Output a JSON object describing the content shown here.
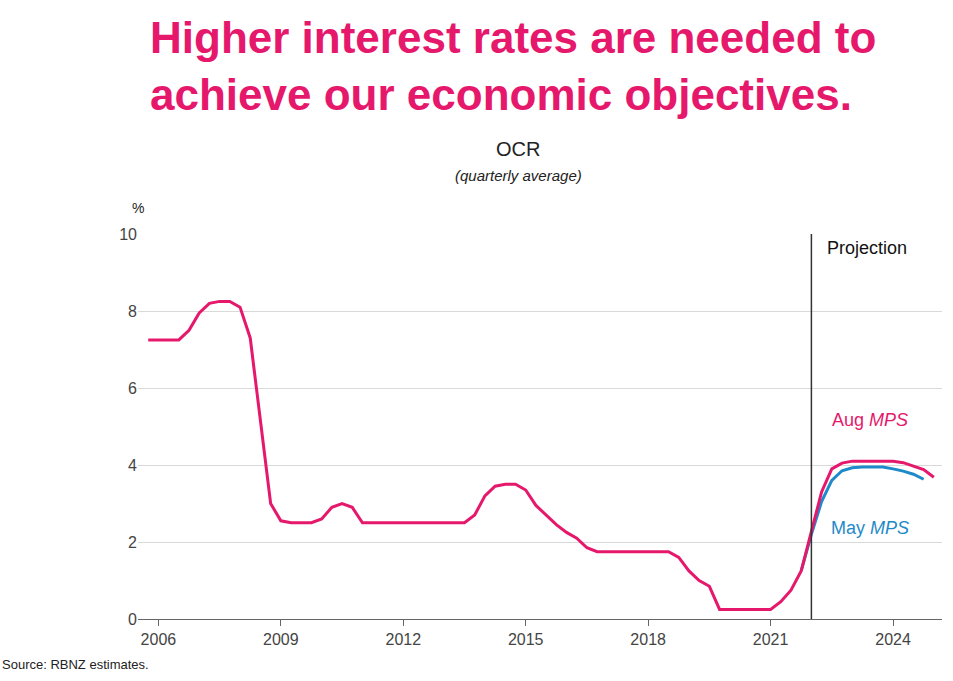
{
  "chart_data": {
    "type": "line",
    "title": [
      "Higher interest rates are needed to",
      "achieve our economic objectives."
    ],
    "chart_title": "OCR",
    "subtitle": "(quarterly average)",
    "y_label": "%",
    "source": "Source: RBNZ estimates.",
    "x": [
      2005.75,
      2006,
      2006.25,
      2006.5,
      2006.75,
      2007,
      2007.25,
      2007.5,
      2007.75,
      2008,
      2008.25,
      2008.5,
      2008.75,
      2009,
      2009.25,
      2009.5,
      2009.75,
      2010,
      2010.25,
      2010.5,
      2010.75,
      2011,
      2011.25,
      2011.5,
      2011.75,
      2012,
      2012.25,
      2012.5,
      2012.75,
      2013,
      2013.25,
      2013.5,
      2013.75,
      2014,
      2014.25,
      2014.5,
      2014.75,
      2015,
      2015.25,
      2015.5,
      2015.75,
      2016,
      2016.25,
      2016.5,
      2016.75,
      2017,
      2017.25,
      2017.5,
      2017.75,
      2018,
      2018.25,
      2018.5,
      2018.75,
      2019,
      2019.25,
      2019.5,
      2019.75,
      2020,
      2020.25,
      2020.5,
      2020.75,
      2021,
      2021.25,
      2021.5,
      2021.75,
      2022,
      2022.25,
      2022.5,
      2022.75,
      2023,
      2023.25,
      2023.5,
      2023.75,
      2024,
      2024.25,
      2024.5,
      2024.75,
      2025
    ],
    "series": [
      {
        "name": "May MPS",
        "color": "#1f8ac9",
        "values": [
          null,
          null,
          null,
          null,
          null,
          null,
          null,
          null,
          null,
          null,
          null,
          null,
          null,
          null,
          null,
          null,
          null,
          null,
          null,
          null,
          null,
          null,
          null,
          null,
          null,
          null,
          null,
          null,
          null,
          null,
          null,
          null,
          null,
          null,
          null,
          null,
          null,
          null,
          null,
          null,
          null,
          null,
          null,
          null,
          null,
          null,
          null,
          null,
          null,
          null,
          null,
          null,
          null,
          null,
          null,
          null,
          null,
          null,
          null,
          null,
          null,
          null,
          null,
          null,
          1.25,
          2.2,
          3.05,
          3.6,
          3.85,
          3.93,
          3.95,
          3.95,
          3.95,
          3.9,
          3.84,
          3.76,
          3.63,
          null
        ]
      },
      {
        "name": "Aug MPS",
        "color": "#e5186c",
        "values": [
          7.25,
          7.25,
          7.25,
          7.25,
          7.5,
          7.95,
          8.2,
          8.25,
          8.25,
          8.1,
          7.3,
          5.1,
          3.0,
          2.55,
          2.5,
          2.5,
          2.5,
          2.6,
          2.9,
          3.0,
          2.9,
          2.5,
          2.5,
          2.5,
          2.5,
          2.5,
          2.5,
          2.5,
          2.5,
          2.5,
          2.5,
          2.5,
          2.7,
          3.2,
          3.45,
          3.5,
          3.5,
          3.35,
          2.95,
          2.7,
          2.45,
          2.25,
          2.1,
          1.85,
          1.75,
          1.75,
          1.75,
          1.75,
          1.75,
          1.75,
          1.75,
          1.75,
          1.6,
          1.25,
          1.0,
          0.85,
          0.25,
          0.25,
          0.25,
          0.25,
          0.25,
          0.25,
          0.45,
          0.75,
          1.25,
          2.3,
          3.3,
          3.9,
          4.05,
          4.1,
          4.1,
          4.1,
          4.1,
          4.1,
          4.06,
          3.98,
          3.88,
          3.68
        ]
      }
    ],
    "xlim": [
      2005.5,
      2025.2
    ],
    "xticks": [
      2006,
      2009,
      2012,
      2015,
      2018,
      2021,
      2024
    ],
    "ylim": [
      0,
      10
    ],
    "yticks": [
      0,
      2,
      4,
      6,
      8,
      10
    ],
    "grid": true,
    "annotations": [
      {
        "text": "Projection",
        "x": 2022
      }
    ]
  }
}
